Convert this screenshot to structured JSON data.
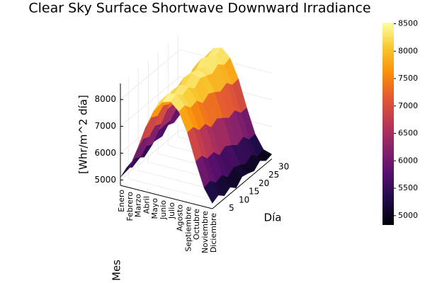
{
  "chart_data": {
    "type": "surface",
    "title": "Clear Sky Surface Shortwave Downward Irradiance",
    "xlabel": "Mes",
    "ylabel": "Día",
    "zlabel": "[Whr/m^2 día]",
    "colormap": "inferno",
    "categories": [
      "Enero",
      "Febrero",
      "Marzo",
      "Abril",
      "Mayo",
      "Junio",
      "Julio",
      "Agosto",
      "Septiembre",
      "Octubre",
      "Noviembre",
      "Diciembre"
    ],
    "y": [
      1,
      4,
      7,
      10,
      13,
      16,
      19,
      22,
      25,
      28,
      31
    ],
    "ylim": [
      1,
      31
    ],
    "yticks": [
      5,
      10,
      15,
      20,
      25,
      30
    ],
    "zlim": [
      4800,
      8600
    ],
    "zticks": [
      5000,
      6000,
      7000,
      8000
    ],
    "clim": [
      4830,
      8520
    ],
    "cticks": [
      5000,
      5500,
      6000,
      6500,
      7000,
      7500,
      8000,
      8500
    ],
    "values": [
      [
        5100,
        5260,
        5100,
        5280,
        5110,
        5390,
        5370,
        5320,
        5560,
        5460,
        5570
      ],
      [
        5500,
        5700,
        5580,
        5800,
        5670,
        5990,
        6010,
        6000,
        6280,
        6220,
        6370
      ],
      [
        6300,
        6510,
        6400,
        6630,
        6510,
        6840,
        6870,
        6870,
        7160,
        7070,
        7270
      ],
      [
        7200,
        7390,
        7260,
        7470,
        7330,
        7640,
        7650,
        7630,
        7900,
        7790,
        7970
      ],
      [
        7900,
        8060,
        7940,
        8080,
        7910,
        8190,
        8170,
        8120,
        8360,
        8220,
        8370
      ],
      [
        8300,
        8430,
        8240,
        8390,
        8190,
        8440,
        8390,
        8310,
        8520,
        8350,
        8470
      ],
      [
        8400,
        8490,
        8260,
        8370,
        8130,
        8340,
        8250,
        8130,
        8300,
        8090,
        8170
      ],
      [
        8100,
        8150,
        7880,
        7950,
        7670,
        7840,
        7710,
        7550,
        7680,
        7430,
        7470
      ],
      [
        7400,
        7420,
        7120,
        7160,
        6850,
        6990,
        6830,
        6640,
        6740,
        6460,
        6470
      ],
      [
        6400,
        6430,
        6140,
        6190,
        5890,
        6040,
        5890,
        5710,
        5820,
        5550,
        5570
      ],
      [
        5500,
        5570,
        5320,
        5410,
        5150,
        5340,
        5230,
        5090,
        5240,
        5000,
        5070
      ],
      [
        5000,
        5115,
        4910,
        5045,
        4830,
        5065,
        5000,
        4905,
        5100,
        4915,
        4970
      ]
    ]
  }
}
